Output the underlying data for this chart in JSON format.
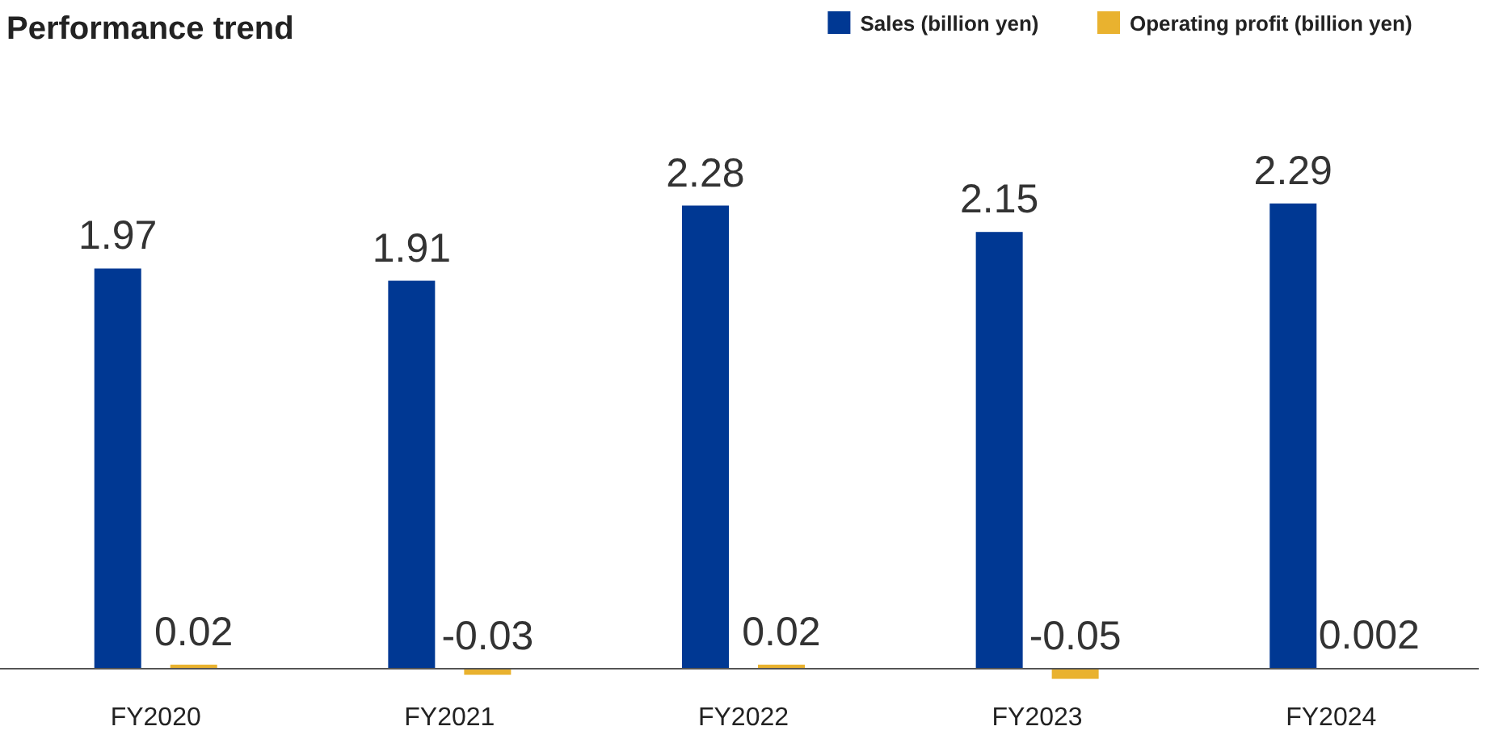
{
  "chart_data": {
    "type": "bar",
    "title": "Performance trend",
    "categories": [
      "FY2020",
      "FY2021",
      "FY2022",
      "FY2023",
      "FY2024"
    ],
    "series": [
      {
        "name": "Sales (billion yen)",
        "color": "#003893",
        "values": [
          1.97,
          1.91,
          2.28,
          2.15,
          2.29
        ]
      },
      {
        "name": "Operating profit (billion yen)",
        "color": "#e9b22f",
        "values": [
          0.02,
          -0.03,
          0.02,
          -0.05,
          0.002
        ]
      }
    ],
    "data_labels": true,
    "legend": "top right"
  }
}
